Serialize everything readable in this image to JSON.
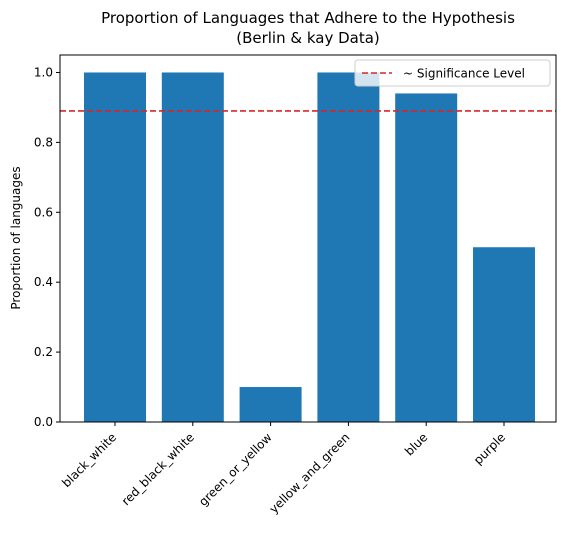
{
  "chart_data": {
    "type": "bar",
    "title": "Proportion of Languages that Adhere to the Hypothesis",
    "subtitle": "(Berlin & kay Data)",
    "xlabel": "",
    "ylabel": "Proportion of languages",
    "categories": [
      "black_white",
      "red_black_white",
      "green_or_yellow",
      "yellow_and_green",
      "blue",
      "purple"
    ],
    "values": [
      1.0,
      1.0,
      0.1,
      1.0,
      0.94,
      0.5
    ],
    "ylim": [
      0,
      1.05
    ],
    "yticks": [
      0.0,
      0.2,
      0.4,
      0.6,
      0.8,
      1.0
    ],
    "ytick_labels": [
      "0.0",
      "0.2",
      "0.4",
      "0.6",
      "0.8",
      "1.0"
    ],
    "reference_line": {
      "label": "~ Significance Level",
      "value": 0.89,
      "color": "#d62728",
      "style": "dashed"
    },
    "bar_color": "#1f77b4",
    "grid": false,
    "legend": {
      "position": "top-right",
      "entries": [
        "~ Significance Level"
      ]
    }
  }
}
